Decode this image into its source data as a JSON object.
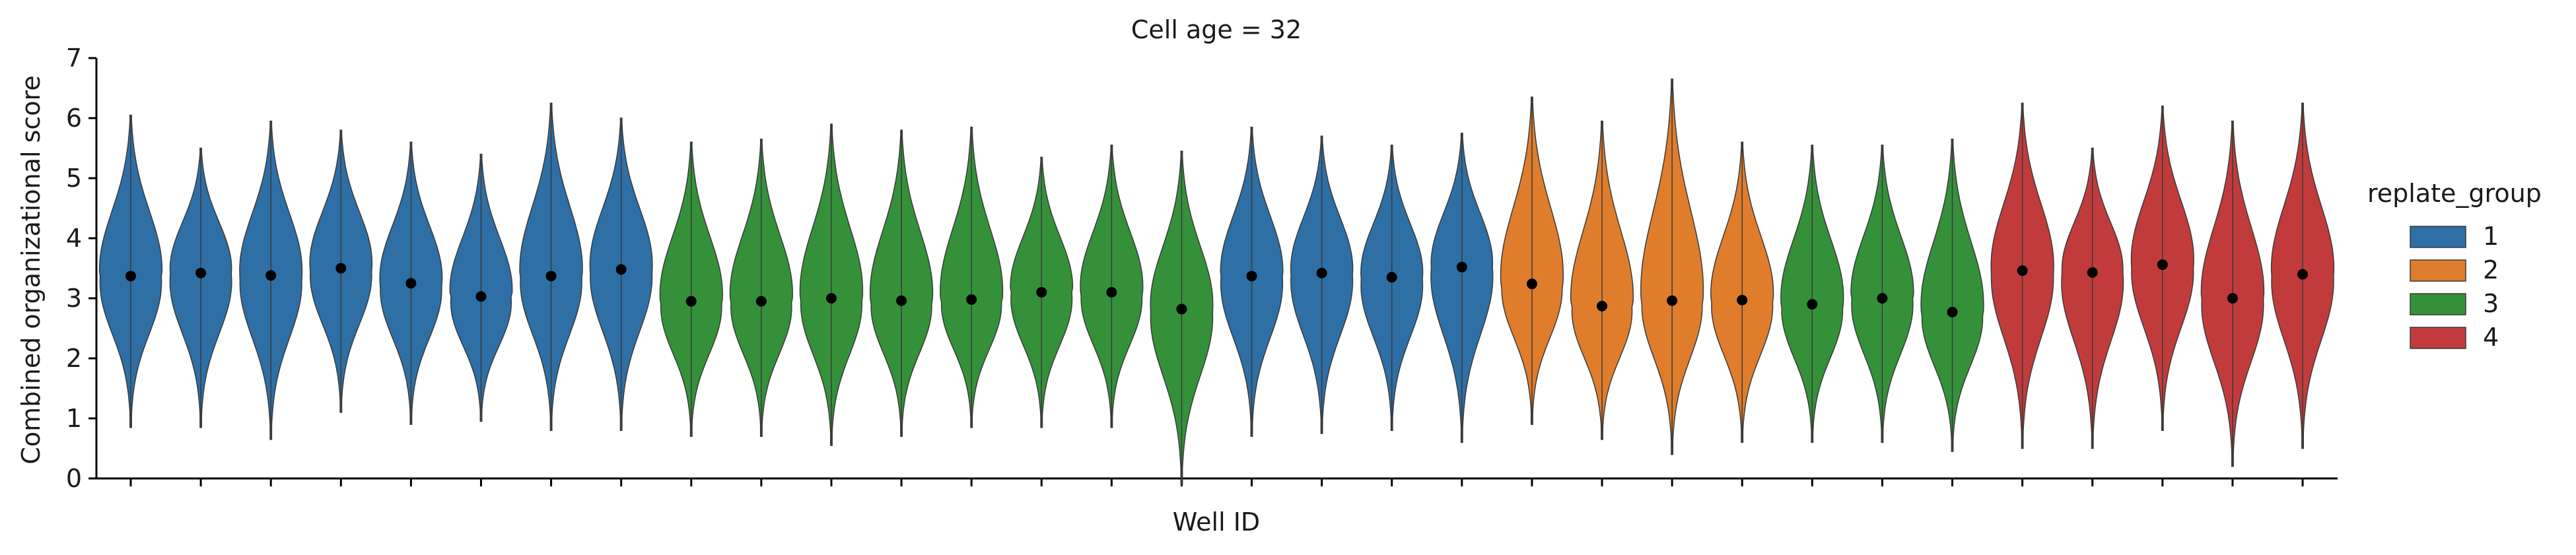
{
  "colors": {
    "1": "#2e6fa6",
    "2": "#e07d2c",
    "3": "#34913a",
    "4": "#c23b3c",
    "point": "#000000",
    "axis": "#000000"
  },
  "chart_data": {
    "type": "violin",
    "title": "Cell age = 32",
    "xlabel": "Well ID",
    "ylabel": "Combined organizational score",
    "ylim": [
      0,
      7
    ],
    "yticks": [
      0,
      1,
      2,
      3,
      4,
      5,
      6,
      7
    ],
    "x_tick_labels_shown": false,
    "legend": {
      "title": "replate_group",
      "position": "right",
      "entries": [
        "1",
        "2",
        "3",
        "4"
      ]
    },
    "series": [
      {
        "group": "1",
        "min": 0.85,
        "max": 6.05,
        "mean": 3.37
      },
      {
        "group": "1",
        "min": 0.85,
        "max": 5.5,
        "mean": 3.42
      },
      {
        "group": "1",
        "min": 0.65,
        "max": 5.95,
        "mean": 3.38
      },
      {
        "group": "1",
        "min": 1.1,
        "max": 5.8,
        "mean": 3.5
      },
      {
        "group": "1",
        "min": 0.9,
        "max": 5.6,
        "mean": 3.25
      },
      {
        "group": "1",
        "min": 0.95,
        "max": 5.4,
        "mean": 3.03
      },
      {
        "group": "1",
        "min": 0.8,
        "max": 6.25,
        "mean": 3.37
      },
      {
        "group": "1",
        "min": 0.8,
        "max": 6.0,
        "mean": 3.48
      },
      {
        "group": "3",
        "min": 0.7,
        "max": 5.6,
        "mean": 2.95
      },
      {
        "group": "3",
        "min": 0.7,
        "max": 5.65,
        "mean": 2.95
      },
      {
        "group": "3",
        "min": 0.55,
        "max": 5.9,
        "mean": 3.0
      },
      {
        "group": "3",
        "min": 0.7,
        "max": 5.8,
        "mean": 2.96
      },
      {
        "group": "3",
        "min": 0.85,
        "max": 5.85,
        "mean": 2.98
      },
      {
        "group": "3",
        "min": 0.85,
        "max": 5.35,
        "mean": 3.1
      },
      {
        "group": "3",
        "min": 0.85,
        "max": 5.55,
        "mean": 3.1
      },
      {
        "group": "3",
        "min": -0.1,
        "max": 5.45,
        "mean": 2.82
      },
      {
        "group": "1",
        "min": 0.7,
        "max": 5.85,
        "mean": 3.37
      },
      {
        "group": "1",
        "min": 0.75,
        "max": 5.7,
        "mean": 3.42
      },
      {
        "group": "1",
        "min": 0.8,
        "max": 5.55,
        "mean": 3.35
      },
      {
        "group": "1",
        "min": 0.6,
        "max": 5.75,
        "mean": 3.52
      },
      {
        "group": "2",
        "min": 0.9,
        "max": 6.35,
        "mean": 3.24
      },
      {
        "group": "2",
        "min": 0.65,
        "max": 5.95,
        "mean": 2.87
      },
      {
        "group": "2",
        "min": 0.4,
        "max": 6.65,
        "mean": 2.96
      },
      {
        "group": "2",
        "min": 0.6,
        "max": 5.6,
        "mean": 2.97
      },
      {
        "group": "3",
        "min": 0.6,
        "max": 5.55,
        "mean": 2.9
      },
      {
        "group": "3",
        "min": 0.6,
        "max": 5.55,
        "mean": 3.0
      },
      {
        "group": "3",
        "min": 0.45,
        "max": 5.65,
        "mean": 2.77
      },
      {
        "group": "4",
        "min": 0.5,
        "max": 6.25,
        "mean": 3.46
      },
      {
        "group": "4",
        "min": 0.5,
        "max": 5.5,
        "mean": 3.43
      },
      {
        "group": "4",
        "min": 0.8,
        "max": 6.2,
        "mean": 3.56
      },
      {
        "group": "4",
        "min": 0.2,
        "max": 5.95,
        "mean": 3.0
      },
      {
        "group": "4",
        "min": 0.5,
        "max": 6.25,
        "mean": 3.4
      }
    ]
  }
}
